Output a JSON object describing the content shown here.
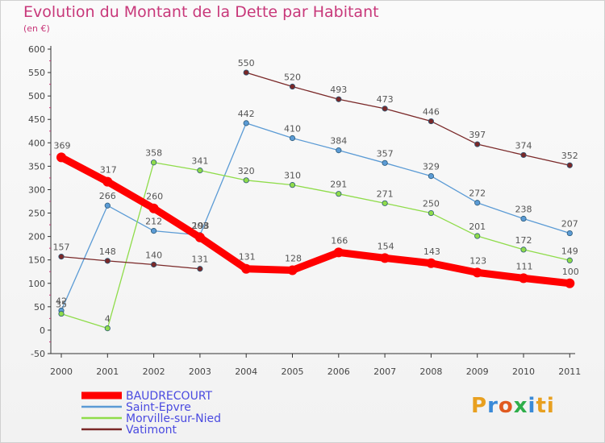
{
  "title": "Evolution du Montant de la Dette par Habitant",
  "subtitle": "(en €)",
  "logo": {
    "text": "Proxiti",
    "colors": [
      "#e8a020",
      "#3a8ad8",
      "#e05a20",
      "#2fae4a",
      "#3a8ad8",
      "#e8a020"
    ]
  },
  "chart_data": {
    "type": "line",
    "title": "Evolution du Montant de la Dette par Habitant",
    "subtitle": "(en €)",
    "categories": [
      "2000",
      "2001",
      "2002",
      "2003",
      "2004",
      "2005",
      "2006",
      "2007",
      "2008",
      "2009",
      "2010",
      "2011"
    ],
    "ylim": [
      -50,
      600
    ],
    "yticks": [
      -50,
      0,
      50,
      100,
      150,
      200,
      250,
      300,
      350,
      400,
      450,
      500,
      550,
      600
    ],
    "grid": false,
    "legend_position": "bottom-left",
    "series": [
      {
        "name": "BAUDRECOURT",
        "color": "#ff0000",
        "values": [
          369,
          317,
          260,
          198,
          131,
          128,
          166,
          154,
          143,
          123,
          111,
          100
        ],
        "emphasis": true
      },
      {
        "name": "Saint-Epvre",
        "color": "#5b9bd5",
        "values": [
          42,
          266,
          212,
          203,
          442,
          410,
          384,
          357,
          329,
          272,
          238,
          207
        ]
      },
      {
        "name": "Morville-sur-Nied",
        "color": "#8fdc4a",
        "values": [
          35,
          4,
          358,
          341,
          320,
          310,
          291,
          271,
          250,
          201,
          172,
          149
        ]
      },
      {
        "name": "Vatimont",
        "color": "#7a2828",
        "values": [
          157,
          148,
          140,
          131,
          550,
          520,
          493,
          473,
          446,
          397,
          374,
          352
        ],
        "break_after_index": 3
      }
    ]
  }
}
